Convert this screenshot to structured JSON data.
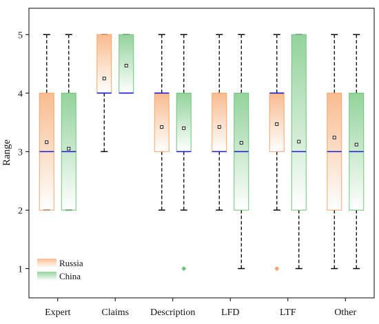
{
  "chart_data": {
    "type": "box",
    "categories": [
      "Expert",
      "Claims",
      "Description",
      "LFD",
      "LTF",
      "Other"
    ],
    "ylabel": "Range",
    "ylim": [
      0.5,
      5.45
    ],
    "yticks": [
      1,
      2,
      3,
      4,
      5
    ],
    "grid": false,
    "legend_position": "bottom-left",
    "series": [
      {
        "name": "Russia",
        "color": "#f6a56a",
        "boxes": [
          {
            "whisker_low": 2,
            "q1": 2,
            "median": 3,
            "q3": 4,
            "whisker_high": 5,
            "mean": 3.16,
            "outliers": []
          },
          {
            "whisker_low": 3,
            "q1": 4,
            "median": 4,
            "q3": 5,
            "whisker_high": 5,
            "mean": 4.25,
            "outliers": []
          },
          {
            "whisker_low": 2,
            "q1": 3,
            "median": 4,
            "q3": 4,
            "whisker_high": 5,
            "mean": 3.42,
            "outliers": []
          },
          {
            "whisker_low": 2,
            "q1": 3,
            "median": 3,
            "q3": 4,
            "whisker_high": 5,
            "mean": 3.42,
            "outliers": []
          },
          {
            "whisker_low": 2,
            "q1": 3,
            "median": 4,
            "q3": 4,
            "whisker_high": 5,
            "mean": 3.47,
            "outliers": [
              1
            ]
          },
          {
            "whisker_low": 1,
            "q1": 2,
            "median": 3,
            "q3": 4,
            "whisker_high": 5,
            "mean": 3.24,
            "outliers": []
          }
        ]
      },
      {
        "name": "China",
        "color": "#6fc47a",
        "boxes": [
          {
            "whisker_low": 2,
            "q1": 2,
            "median": 3,
            "q3": 4,
            "whisker_high": 5,
            "mean": 3.05,
            "outliers": []
          },
          {
            "whisker_low": 4,
            "q1": 4,
            "median": 4,
            "q3": 5,
            "whisker_high": 5,
            "mean": 4.47,
            "outliers": []
          },
          {
            "whisker_low": 2,
            "q1": 3,
            "median": 3,
            "q3": 4,
            "whisker_high": 5,
            "mean": 3.4,
            "outliers": [
              1
            ]
          },
          {
            "whisker_low": 1,
            "q1": 2,
            "median": 3,
            "q3": 4,
            "whisker_high": 5,
            "mean": 3.15,
            "outliers": []
          },
          {
            "whisker_low": 1,
            "q1": 2,
            "median": 3,
            "q3": 5,
            "whisker_high": 5,
            "mean": 3.17,
            "outliers": []
          },
          {
            "whisker_low": 1,
            "q1": 2,
            "median": 3,
            "q3": 4,
            "whisker_high": 5,
            "mean": 3.12,
            "outliers": []
          }
        ]
      }
    ]
  }
}
